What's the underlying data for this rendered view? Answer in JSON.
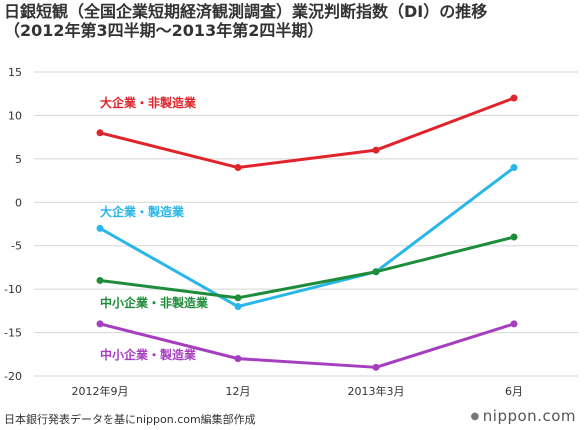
{
  "title_lines": [
    "日銀短観（全国企業短期経済観測調査）業況判断指数（DI）の推移",
    "（2012年第3四半期〜2013年第2四半期）"
  ],
  "source": "日本銀行発表データを基にnippon.com編集部作成",
  "brand": "nippon.com",
  "chart_data": {
    "type": "line",
    "categories": [
      "2012年9月",
      "12月",
      "2013年3月",
      "6月"
    ],
    "ylim": [
      -20,
      15
    ],
    "yticks": [
      15,
      10,
      5,
      0,
      -5,
      -10,
      -15,
      -20
    ],
    "grid": true,
    "series": [
      {
        "name": "大企業・非製造業",
        "color": "#e0242b",
        "values": [
          8,
          4,
          6,
          12
        ]
      },
      {
        "name": "大企業・製造業",
        "color": "#29b6e8",
        "values": [
          -3,
          -12,
          -8,
          4
        ]
      },
      {
        "name": "中小企業・非製造業",
        "color": "#1e8c3a",
        "values": [
          -9,
          -11,
          -8,
          -4
        ]
      },
      {
        "name": "中小企業・製造業",
        "color": "#a63fbf",
        "values": [
          -14,
          -18,
          -19,
          -14
        ]
      }
    ]
  }
}
